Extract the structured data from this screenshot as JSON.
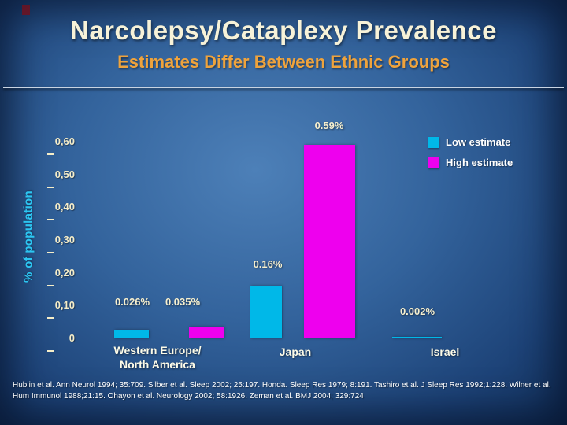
{
  "slide": {
    "title": "Narcolepsy/Cataplexy Prevalence",
    "subtitle": "Estimates Differ Between Ethnic Groups",
    "footer": "Hublin et al. Ann Neurol 1994; 35:709. Silber et al. Sleep 2002; 25:197. Honda. Sleep Res 1979; 8:191. Tashiro et al. J Sleep Res 1992;1:228. Wilner et al. Hum Immunol 1988;21:15. Ohayon et al. Neurology 2002; 58:1926. Zeman et al. BMJ 2004; 329:724"
  },
  "colors": {
    "background_center": "#4d80b8",
    "background_edge": "#122f58",
    "title": "#f7f2d8",
    "subtitle": "#efa33c",
    "y_axis_label": "#2cc6f2",
    "low_estimate": "#00b8e8",
    "high_estimate": "#ee00ee"
  },
  "chart_data": {
    "type": "bar",
    "title": "",
    "xlabel": "",
    "ylabel": "% of population",
    "ylim": [
      0,
      0.6
    ],
    "grid": false,
    "legend_position": "top-right",
    "y_ticks": [
      "0,60",
      "0,50",
      "0,40",
      "0,30",
      "0,20",
      "0,10",
      "0"
    ],
    "categories": [
      "Western Europe/North America",
      "Japan",
      "Israel"
    ],
    "category_lines": [
      [
        "Western Europe/",
        "North America"
      ],
      [
        "Japan"
      ],
      [
        "Israel"
      ]
    ],
    "series": [
      {
        "name": "Low estimate",
        "color": "#00b8e8",
        "values": [
          0.026,
          0.16,
          0.002
        ]
      },
      {
        "name": "High estimate",
        "color": "#ee00ee",
        "values": [
          0.035,
          0.59,
          null
        ]
      }
    ],
    "data_labels": {
      "we_low": "0.026%",
      "we_high": "0.035%",
      "japan_low": "0.16%",
      "japan_high": "0.59%",
      "israel_low": "0.002%"
    }
  }
}
